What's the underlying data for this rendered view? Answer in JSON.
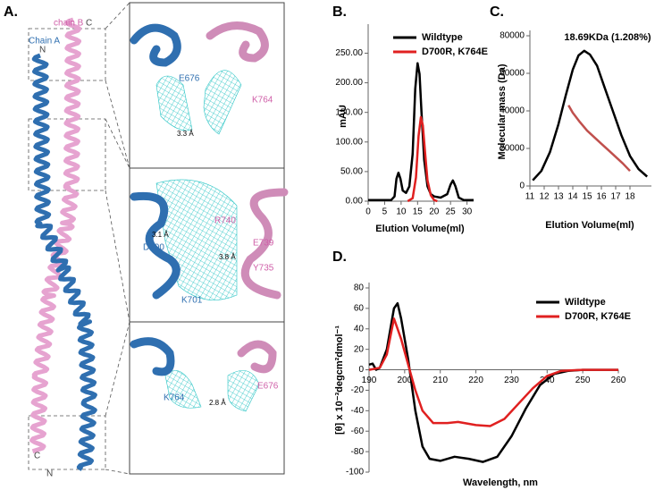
{
  "panel_a": {
    "label": "A.",
    "overview": {
      "chain_b": "chain B",
      "chain_b_end": "C",
      "chain_a": "Chain A",
      "chain_a_end": "N",
      "bottom_c": "C",
      "bottom_n": "N"
    },
    "insets": [
      {
        "residue_a": "E676",
        "residue_b": "K764",
        "distance": "3.3 Å"
      },
      {
        "residue_a": "D700",
        "residue_b": "R740",
        "residue_c": "E739",
        "residue_d": "Y735",
        "residue_e": "K701",
        "distance_a": "3.1 Å",
        "distance_b": "3.8 Å"
      },
      {
        "residue_a": "K764",
        "residue_b": "E676",
        "distance": "2.8 Å"
      }
    ]
  },
  "chart_data": [
    {
      "type": "line",
      "label": "B.",
      "ylabel": "mAU",
      "xlabel": "Elution Volume(ml)",
      "xlim": [
        0,
        32
      ],
      "ylim": [
        0,
        290
      ],
      "xticks": [
        0,
        5,
        10,
        15,
        20,
        25,
        30
      ],
      "yticks": [
        {
          "value": 0,
          "label": "0.00"
        },
        {
          "value": 50,
          "label": "50.00"
        },
        {
          "value": 100,
          "label": "100.00"
        },
        {
          "value": 150,
          "label": "150.00"
        },
        {
          "value": 200,
          "label": "200.00"
        },
        {
          "value": 250,
          "label": "250.00"
        }
      ],
      "series": [
        {
          "name": "Wildtype",
          "color": "#000000",
          "x": [
            0,
            7,
            8,
            8.6,
            9.2,
            9.8,
            10.5,
            11.5,
            12.5,
            13.5,
            14.3,
            15,
            15.6,
            16.2,
            17,
            18,
            19,
            20,
            22,
            24,
            25,
            25.7,
            26.5,
            27.5,
            29,
            32
          ],
          "values": [
            2,
            2,
            8,
            38,
            48,
            38,
            18,
            14,
            25,
            80,
            190,
            233,
            215,
            150,
            70,
            25,
            12,
            8,
            6,
            12,
            28,
            35,
            25,
            6,
            2,
            2
          ]
        },
        {
          "name": "D700R, K764E",
          "color": "#e02020",
          "x": [
            12,
            13.5,
            14.5,
            15.3,
            16,
            16.6,
            17.3,
            18,
            19,
            20,
            21
          ],
          "values": [
            0,
            5,
            40,
            110,
            142,
            128,
            80,
            35,
            10,
            2,
            0
          ]
        }
      ]
    },
    {
      "type": "line",
      "label": "C.",
      "ylabel": "Molecular mass (Da)",
      "xlabel": "Elution Volume(ml)",
      "annotation": "18.69KDa (1.208%)",
      "xlim": [
        11,
        19.5
      ],
      "ylim": [
        0,
        80000
      ],
      "xticks": [
        11,
        12,
        13,
        14,
        15,
        16,
        17,
        18
      ],
      "yticks": [
        0,
        20000,
        40000,
        60000,
        80000
      ],
      "series": [
        {
          "color": "#000000",
          "x": [
            11.2,
            11.8,
            12.4,
            13,
            13.5,
            14,
            14.4,
            14.8,
            15.2,
            15.7,
            16.2,
            16.8,
            17.4,
            18,
            18.6,
            19.2
          ],
          "values": [
            3000,
            8000,
            18000,
            33000,
            48000,
            62000,
            69500,
            72000,
            70000,
            64000,
            53000,
            40000,
            27000,
            16000,
            9000,
            5000
          ]
        },
        {
          "color": "#c0504d",
          "x": [
            13.7,
            14,
            14.5,
            15,
            15.5,
            16,
            16.5,
            17,
            17.5,
            18
          ],
          "values": [
            43000,
            39000,
            34000,
            29500,
            26000,
            22500,
            19000,
            15500,
            12000,
            8000
          ]
        }
      ]
    },
    {
      "type": "line",
      "label": "D.",
      "ylabel": "[θ] x 10⁻³degcm²dmol⁻¹",
      "xlabel": "Wavelength, nm",
      "xlim": [
        190,
        260
      ],
      "ylim": [
        -100,
        80
      ],
      "xticks": [
        190,
        200,
        210,
        220,
        230,
        240,
        250,
        260
      ],
      "yticks": [
        -100,
        -80,
        -60,
        -40,
        -20,
        0,
        20,
        40,
        60,
        80
      ],
      "series": [
        {
          "name": "Wildtype",
          "color": "#000000",
          "x": [
            190,
            191,
            192,
            193,
            195,
            197,
            198,
            199,
            201,
            203,
            205,
            207,
            210,
            214,
            218,
            222,
            226,
            230,
            234,
            238,
            242,
            246,
            250,
            260
          ],
          "values": [
            5,
            6,
            0,
            2,
            20,
            60,
            65,
            50,
            10,
            -40,
            -75,
            -87,
            -89,
            -85,
            -87,
            -90,
            -85,
            -65,
            -38,
            -15,
            -4,
            -1,
            0,
            0
          ]
        },
        {
          "name": "D700R, K764E",
          "color": "#e02020",
          "x": [
            190,
            193,
            195,
            197,
            199,
            201,
            203,
            205,
            208,
            212,
            215,
            220,
            224,
            228,
            232,
            236,
            240,
            244,
            250,
            260
          ],
          "values": [
            0,
            2,
            15,
            50,
            30,
            5,
            -20,
            -40,
            -52,
            -52,
            -51,
            -54,
            -55,
            -48,
            -33,
            -18,
            -6,
            -1,
            0,
            0
          ]
        }
      ]
    }
  ]
}
